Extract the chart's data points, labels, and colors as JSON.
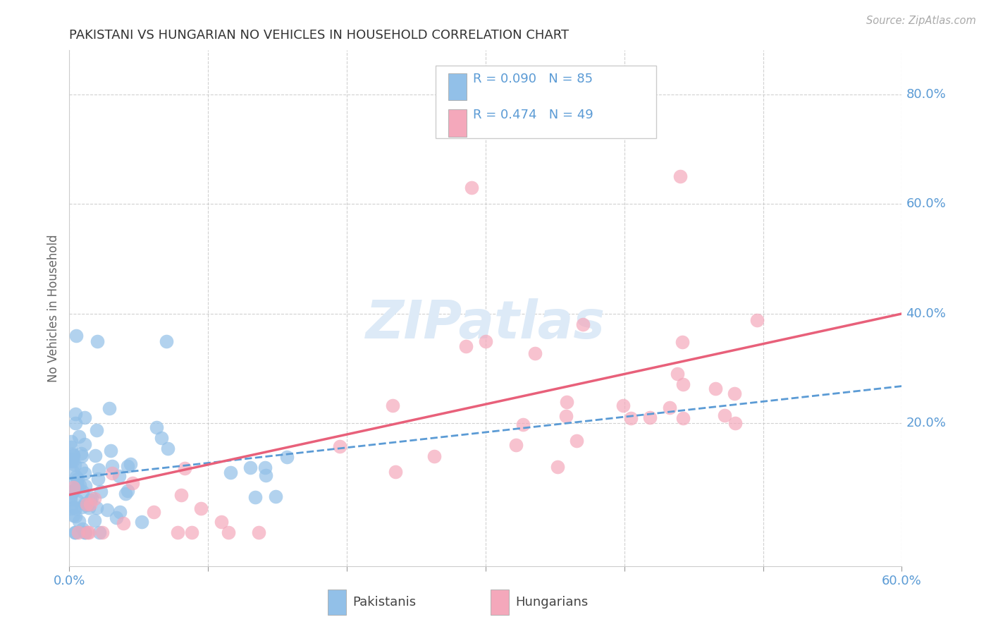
{
  "title": "PAKISTANI VS HUNGARIAN NO VEHICLES IN HOUSEHOLD CORRELATION CHART",
  "source": "Source: ZipAtlas.com",
  "ylabel": "No Vehicles in Household",
  "xlim": [
    0.0,
    0.6
  ],
  "ylim": [
    -0.06,
    0.88
  ],
  "x_ticks": [
    0.0,
    0.1,
    0.2,
    0.3,
    0.4,
    0.5,
    0.6
  ],
  "y_ticks": [
    0.2,
    0.4,
    0.6,
    0.8
  ],
  "y_tick_labels": [
    "20.0%",
    "40.0%",
    "60.0%",
    "80.0%"
  ],
  "R_pakistani": 0.09,
  "N_pakistani": 85,
  "R_hungarian": 0.474,
  "N_hungarian": 49,
  "pakistani_scatter_color": "#92c0e8",
  "hungarian_scatter_color": "#f4a8bb",
  "pakistani_line_color": "#5b9bd5",
  "hungarian_line_color": "#e8607a",
  "tick_color": "#5b9bd5",
  "title_color": "#333333",
  "source_color": "#aaaaaa",
  "ylabel_color": "#666666",
  "watermark_color": "#ddeaf7",
  "grid_color": "#cccccc",
  "legend_edge_color": "#cccccc",
  "bg_color": "#ffffff",
  "pak_intercept": 0.075,
  "pak_slope": 0.32,
  "hun_intercept": 0.055,
  "hun_slope": 0.62
}
